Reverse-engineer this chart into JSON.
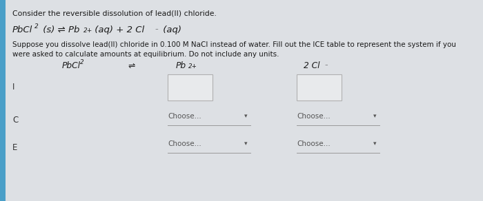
{
  "bg_color": "#c8cdd4",
  "panel_color": "#dde0e4",
  "left_bar_color": "#4a9fc8",
  "title": "Consider the reversible dissolution of lead(II) chloride.",
  "eq_part1": "PbCl",
  "eq_part2": "2",
  "eq_part3": " (s) ",
  "eq_arrow": "⇌",
  "eq_part4": " Pb",
  "eq_part5": "2+",
  "eq_part6": " (aq) + 2 Cl",
  "eq_part7": "⁻",
  "eq_part8": " (aq)",
  "body1": "Suppose you dissolve lead(II) chloride in 0.100 M NaCl instead of water. Fill out the ICE table to represent the system if you",
  "body2": "were asked to calculate amounts at equilibrium. Do not include any units.",
  "hdr_pbcl2": "PbCl",
  "hdr_arrow": "⇌",
  "hdr_pb2": "Pb",
  "hdr_pb2_sup": "2+",
  "hdr_2cl": "2 Cl",
  "hdr_2cl_sup": "⁻",
  "choose_text": "Choose...",
  "arrow_char": "▾",
  "text_color": "#1a1a1a",
  "label_color": "#333333",
  "choose_color": "#555555",
  "box_edge_color": "#b0b0b0",
  "box_face_color": "#e8eaec",
  "underline_color": "#999999",
  "font_size_title": 7.8,
  "font_size_eq": 9.5,
  "font_size_body": 7.5,
  "font_size_header": 8.8,
  "font_size_row_label": 8.5,
  "font_size_choose": 7.5,
  "font_size_arrow": 8.0
}
